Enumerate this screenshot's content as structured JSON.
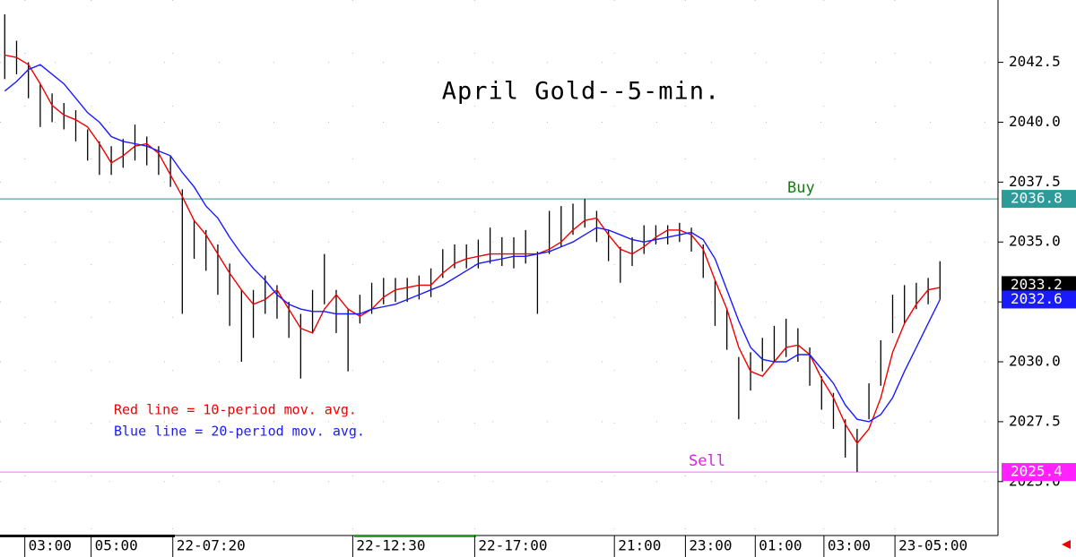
{
  "chart_data": {
    "type": "ohlc",
    "title": "April Gold--5-min.",
    "bar_color": "#000000",
    "high": [
      2044.5,
      2043.4,
      2042.5,
      2041.6,
      2041.2,
      2040.8,
      2040.5,
      2039.7,
      2039.2,
      2039.0,
      2039.3,
      2039.9,
      2039.4,
      2039.0,
      2038.6,
      2037.2,
      2035.9,
      2035.5,
      2034.9,
      2034.1,
      2033.0,
      2033.0,
      2033.6,
      2033.2,
      2032.5,
      2032.0,
      2033.0,
      2034.5,
      2033.0,
      2032.2,
      2032.8,
      2033.3,
      2033.5,
      2033.5,
      2033.5,
      2033.6,
      2033.9,
      2034.7,
      2034.9,
      2034.9,
      2035.1,
      2035.6,
      2035.2,
      2035.2,
      2035.5,
      2034.6,
      2036.3,
      2036.5,
      2036.6,
      2036.8,
      2036.3,
      2035.5,
      2034.8,
      2035.2,
      2035.7,
      2035.7,
      2035.7,
      2035.8,
      2035.6,
      2034.9,
      2033.4,
      2032.2,
      2030.2,
      2030.4,
      2031.0,
      2031.5,
      2031.8,
      2031.4,
      2030.6,
      2029.4,
      2028.7,
      2027.6,
      2027.2,
      2029.1,
      2030.9,
      2032.8,
      2033.2,
      2033.3,
      2033.5,
      2034.2
    ],
    "low": [
      2041.8,
      2042.0,
      2041.0,
      2039.8,
      2040.0,
      2039.7,
      2039.2,
      2038.4,
      2037.8,
      2037.8,
      2038.1,
      2038.4,
      2038.2,
      2037.8,
      2037.3,
      2032.0,
      2034.3,
      2033.8,
      2032.8,
      2031.5,
      2030.0,
      2031.0,
      2032.0,
      2031.8,
      2031.0,
      2029.3,
      2031.2,
      2032.4,
      2031.2,
      2029.6,
      2031.6,
      2032.0,
      2032.4,
      2032.5,
      2032.5,
      2032.6,
      2032.7,
      2033.5,
      2033.9,
      2033.9,
      2033.9,
      2034.1,
      2034.0,
      2033.9,
      2034.1,
      2032.0,
      2034.5,
      2034.8,
      2035.3,
      2035.6,
      2035.0,
      2034.2,
      2033.3,
      2034.0,
      2034.5,
      2034.9,
      2034.9,
      2035.0,
      2034.6,
      2033.5,
      2031.5,
      2030.5,
      2027.6,
      2028.8,
      2029.6,
      2030.0,
      2030.2,
      2030.0,
      2029.0,
      2028.0,
      2027.2,
      2026.0,
      2025.4,
      2027.6,
      2029.0,
      2031.2,
      2031.6,
      2032.2,
      2032.4,
      2032.6
    ],
    "lines": [
      {
        "label": "Red line = 10-period mov. avg.",
        "color": "#ee0000",
        "values": [
          2042.8,
          2042.7,
          2042.4,
          2041.6,
          2040.7,
          2040.3,
          2040.1,
          2039.8,
          2039.1,
          2038.3,
          2038.6,
          2039.0,
          2039.1,
          2038.7,
          2037.8,
          2036.9,
          2035.9,
          2035.3,
          2034.5,
          2033.7,
          2033.0,
          2032.4,
          2032.6,
          2033.0,
          2032.2,
          2031.4,
          2031.2,
          2032.2,
          2032.8,
          2032.2,
          2031.9,
          2032.2,
          2032.7,
          2033.0,
          2033.1,
          2033.2,
          2033.2,
          2033.7,
          2034.1,
          2034.3,
          2034.4,
          2034.5,
          2034.5,
          2034.5,
          2034.5,
          2034.5,
          2034.7,
          2035.0,
          2035.5,
          2035.9,
          2036.0,
          2035.3,
          2034.7,
          2034.5,
          2034.8,
          2035.2,
          2035.5,
          2035.5,
          2035.3,
          2034.7,
          2033.4,
          2032.2,
          2030.6,
          2029.6,
          2029.4,
          2030.0,
          2030.6,
          2030.7,
          2030.3,
          2029.3,
          2028.5,
          2027.4,
          2026.6,
          2027.2,
          2028.5,
          2030.4,
          2031.6,
          2032.4,
          2033.0,
          2033.1
        ]
      },
      {
        "label": "Blue line = 20-period mov. avg.",
        "color": "#1a1aff",
        "values": [
          2041.3,
          2041.7,
          2042.2,
          2042.4,
          2042.0,
          2041.6,
          2041.0,
          2040.4,
          2040.0,
          2039.4,
          2039.2,
          2039.1,
          2039.0,
          2038.8,
          2038.6,
          2037.9,
          2037.3,
          2036.5,
          2036.0,
          2035.2,
          2034.5,
          2033.9,
          2033.4,
          2032.8,
          2032.4,
          2032.2,
          2032.1,
          2032.1,
          2032.0,
          2032.0,
          2032.0,
          2032.2,
          2032.3,
          2032.4,
          2032.6,
          2032.8,
          2033.0,
          2033.2,
          2033.5,
          2033.8,
          2034.1,
          2034.2,
          2034.3,
          2034.4,
          2034.4,
          2034.5,
          2034.6,
          2034.8,
          2035.0,
          2035.3,
          2035.6,
          2035.5,
          2035.3,
          2035.1,
          2035.0,
          2035.1,
          2035.2,
          2035.3,
          2035.4,
          2035.1,
          2034.3,
          2033.0,
          2031.7,
          2030.6,
          2030.1,
          2030.0,
          2030.0,
          2030.3,
          2030.3,
          2029.7,
          2029.1,
          2028.2,
          2027.6,
          2027.5,
          2027.8,
          2028.5,
          2029.6,
          2030.6,
          2031.6,
          2032.6
        ]
      }
    ],
    "levels": [
      {
        "label": "Buy",
        "value": 2036.8,
        "color": "#2e8b8b",
        "text_color": "#1a7a1a",
        "box_color": "#2e9a9a"
      },
      {
        "label": "Sell",
        "value": 2025.4,
        "color": "#ff66ff",
        "text_color": "#e020e0",
        "box_color": "#ff22ff"
      }
    ],
    "price_labels": [
      {
        "value": 2033.2,
        "box_color": "#000000"
      },
      {
        "value": 2032.6,
        "box_color": "#1a1aff"
      }
    ],
    "xlim": [
      -0.4,
      83.9
    ],
    "xticks": [
      {
        "value": 2.0,
        "label": "03:00"
      },
      {
        "value": 7.6,
        "label": "05:00"
      },
      {
        "value": 14.5,
        "label": "22-07:20"
      },
      {
        "value": 29.7,
        "label": "22-12:30"
      },
      {
        "value": 40.0,
        "label": "22-17:00"
      },
      {
        "value": 51.8,
        "label": "21:00"
      },
      {
        "value": 57.8,
        "label": "23:00"
      },
      {
        "value": 63.7,
        "label": "01:00"
      },
      {
        "value": 69.5,
        "label": "03:00"
      },
      {
        "value": 75.5,
        "label": "23-05:00"
      }
    ],
    "ylim": [
      2022.75,
      2045.1
    ],
    "yticks": [
      {
        "value": 2025,
        "label": "2025.0"
      },
      2027.5,
      {
        "value": 2030,
        "label": "2030.0"
      },
      2032.5,
      {
        "value": 2035,
        "label": "2035.0"
      },
      2037.5,
      {
        "value": 2040,
        "label": "2040.0"
      },
      2042.5
    ],
    "grid": true
  }
}
